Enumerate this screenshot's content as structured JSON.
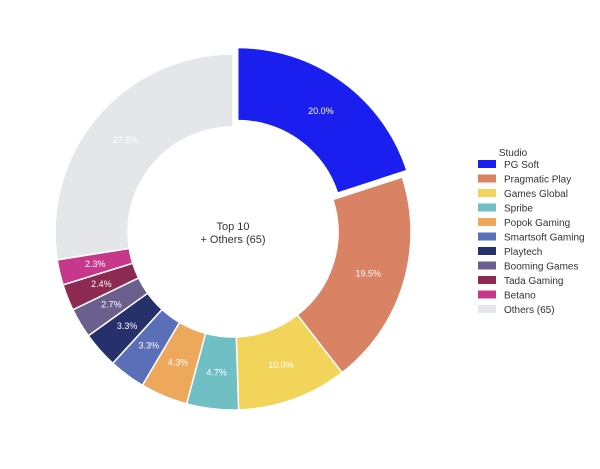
{
  "chart_data": {
    "type": "pie",
    "style": "donut",
    "center_label": [
      "Top 10",
      "+ Others (65)"
    ],
    "legend_title": "Studio",
    "legend_position": "right",
    "slices": [
      {
        "label": "PG Soft",
        "value": 20.0,
        "display": "20.0%",
        "color": "#1a1ff0",
        "label_color": "#ffffff",
        "exploded": true
      },
      {
        "label": "Pragmatic Play",
        "value": 19.5,
        "display": "19.5%",
        "color": "#d98264",
        "label_color": "#ffffff"
      },
      {
        "label": "Games Global",
        "value": 10.0,
        "display": "10.0%",
        "color": "#f2d45a",
        "label_color": "#ffffff"
      },
      {
        "label": "Spribe",
        "value": 4.7,
        "display": "4.7%",
        "color": "#6fbfc4",
        "label_color": "#ffffff"
      },
      {
        "label": "Popok Gaming",
        "value": 4.3,
        "display": "4.3%",
        "color": "#eea85c",
        "label_color": "#ffffff"
      },
      {
        "label": "Smartsoft Gaming",
        "value": 3.3,
        "display": "3.3%",
        "color": "#5a6fb8",
        "label_color": "#ffffff"
      },
      {
        "label": "Playtech",
        "value": 3.3,
        "display": "3.3%",
        "color": "#26306a",
        "label_color": "#ffffff"
      },
      {
        "label": "Booming Games",
        "value": 2.7,
        "display": "2.7%",
        "color": "#6b5f8e",
        "label_color": "#ffffff"
      },
      {
        "label": "Tada Gaming",
        "value": 2.4,
        "display": "2.4%",
        "color": "#8c2a52",
        "label_color": "#ffffff"
      },
      {
        "label": "Betano",
        "value": 2.3,
        "display": "2.3%",
        "color": "#c7388a",
        "label_color": "#ffffff"
      },
      {
        "label": "Others (65)",
        "value": 27.5,
        "display": "27.5%",
        "color": "#e5e6ea",
        "label_color": "#ffffff"
      }
    ]
  }
}
